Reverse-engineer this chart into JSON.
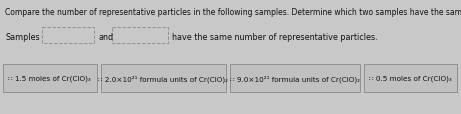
{
  "title": "Compare the number of representative particles in the following samples. Determine which two samples have the same number of particles.",
  "answer_prefix": "Samples",
  "answer_mid": "and",
  "answer_end": "have the same number of representative particles.",
  "boxes": [
    "∷ 1.5 moles of Cr(ClO)₃",
    "∷ 2.0×10²¹ formula units of Cr(ClO)₂",
    "∷ 9.0×10²¹ formula units of Cr(ClO)₂",
    "∷ 0.5 moles of Cr(ClO)₃"
  ],
  "bg_color": "#c8c8c8",
  "box_bg": "#c4c4c4",
  "box_border": "#888888",
  "text_color": "#111111",
  "title_fontsize": 5.5,
  "label_fontsize": 5.2,
  "answer_fontsize": 5.8
}
